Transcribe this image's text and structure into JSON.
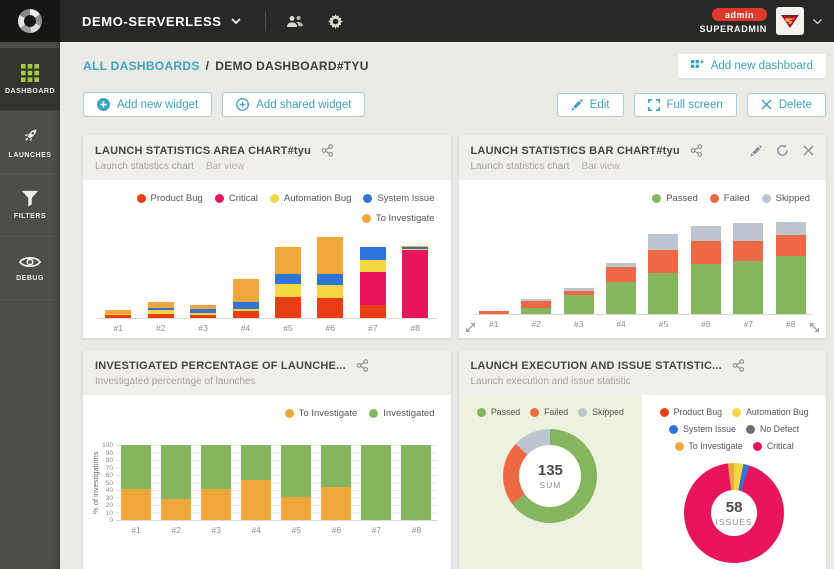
{
  "topbar": {
    "project": "DEMO-SERVERLESS",
    "admin_badge": "admin",
    "username": "SUPERADMIN"
  },
  "sidebar": {
    "items": [
      {
        "label": "DASHBOARD",
        "icon": "grid-icon",
        "active": true
      },
      {
        "label": "LAUNCHES",
        "icon": "rocket-icon",
        "active": false
      },
      {
        "label": "FILTERS",
        "icon": "filter-icon",
        "active": false
      },
      {
        "label": "DEBUG",
        "icon": "eye-icon",
        "active": false
      }
    ]
  },
  "breadcrumb": {
    "root": "ALL DASHBOARDS",
    "separator": "/",
    "current": "DEMO DASHBOARD#TYU"
  },
  "header_actions": {
    "add_dashboard": "Add new dashboard"
  },
  "toolbar": {
    "add_widget": "Add new widget",
    "add_shared_widget": "Add shared widget",
    "edit": "Edit",
    "fullscreen": "Full screen",
    "delete": "Delete"
  },
  "colors": {
    "accent_teal": "#3ba3c0",
    "product_bug": "#e93e14",
    "critical": "#e8145e",
    "automation_bug": "#f6d644",
    "system_issue": "#2e74d9",
    "to_investigate": "#f2a73d",
    "passed": "#86b55f",
    "failed": "#ed6a45",
    "skipped": "#bdc6ce",
    "no_defect": "#6f6f6f",
    "investigated": "#86b55f",
    "admin_red": "#e03a2d",
    "sidebar_active_icon": "#a3c93c"
  },
  "widgets": [
    {
      "title": "LAUNCH STATISTICS AREA CHART#tyu",
      "subtitle": "Launch statistics chart",
      "view": "Bar view"
    },
    {
      "title": "LAUNCH STATISTICS BAR CHART#tyu",
      "subtitle": "Launch statistics chart",
      "view": "Bar view"
    },
    {
      "title": "INVESTIGATED PERCENTAGE OF LAUNCHE...",
      "subtitle": "Investigated percentage of launches",
      "view": ""
    },
    {
      "title": "LAUNCH EXECUTION AND ISSUE STATISTIC...",
      "subtitle": "Launch execution and issue statistic",
      "view": ""
    }
  ],
  "legends": {
    "w1": [
      {
        "label": "Product Bug",
        "color": "#e93e14"
      },
      {
        "label": "Critical",
        "color": "#e8145e"
      },
      {
        "label": "Automation Bug",
        "color": "#f6d644"
      },
      {
        "label": "System Issue",
        "color": "#2e74d9"
      },
      {
        "label": "To Investigate",
        "color": "#f2a73d"
      }
    ],
    "w2": [
      {
        "label": "Passed",
        "color": "#86b55f"
      },
      {
        "label": "Failed",
        "color": "#ed6a45"
      },
      {
        "label": "Skipped",
        "color": "#bdc6ce"
      }
    ],
    "w3": [
      {
        "label": "To Investigate",
        "color": "#f2a73d"
      },
      {
        "label": "Investigated",
        "color": "#86b55f"
      }
    ],
    "w4_left": [
      {
        "label": "Passed",
        "color": "#86b55f"
      },
      {
        "label": "Failed",
        "color": "#ed6a45"
      },
      {
        "label": "Skipped",
        "color": "#bdc6ce"
      }
    ],
    "w4_right": [
      {
        "label": "Product Bug",
        "color": "#e93e14"
      },
      {
        "label": "Automation Bug",
        "color": "#f6d644"
      },
      {
        "label": "System Issue",
        "color": "#2e74d9"
      },
      {
        "label": "No Defect",
        "color": "#6f6f6f"
      },
      {
        "label": "To Investigate",
        "color": "#f2a73d"
      },
      {
        "label": "Critical",
        "color": "#e8145e"
      }
    ]
  },
  "chart_data": [
    {
      "type": "bar",
      "stacked": true,
      "title": "LAUNCH STATISTICS AREA CHART#tyu",
      "categories": [
        "#1",
        "#2",
        "#3",
        "#4",
        "#5",
        "#6",
        "#7",
        "#8"
      ],
      "series": [
        {
          "name": "Product Bug",
          "color": "#e93e14",
          "values": [
            2,
            3,
            2,
            5,
            16,
            15,
            10,
            0
          ]
        },
        {
          "name": "Critical",
          "color": "#e8145e",
          "values": [
            0,
            0,
            0,
            0,
            0,
            0,
            25,
            52
          ]
        },
        {
          "name": "Automation Bug",
          "color": "#f6d644",
          "values": [
            1,
            3,
            2,
            2,
            10,
            10,
            9,
            1
          ]
        },
        {
          "name": "System Issue",
          "color": "#2e74d9",
          "values": [
            0,
            2,
            3,
            5,
            8,
            9,
            10,
            1
          ]
        },
        {
          "name": "To Investigate",
          "color": "#f2a73d",
          "values": [
            3,
            4,
            3,
            18,
            20,
            28,
            0,
            1
          ]
        }
      ],
      "ylim": [
        0,
        65
      ],
      "grid": false,
      "legend_position": "top-right"
    },
    {
      "type": "bar",
      "stacked": true,
      "title": "LAUNCH STATISTICS BAR CHART#tyu",
      "categories": [
        "#1",
        "#2",
        "#3",
        "#4",
        "#5",
        "#6",
        "#7",
        "#8"
      ],
      "series": [
        {
          "name": "Passed",
          "color": "#86b55f",
          "values": [
            0,
            4,
            13,
            22,
            28,
            34,
            36,
            40
          ]
        },
        {
          "name": "Failed",
          "color": "#ed6a45",
          "values": [
            2,
            5,
            3,
            10,
            16,
            16,
            14,
            14
          ]
        },
        {
          "name": "Skipped",
          "color": "#bdc6ce",
          "values": [
            0,
            1,
            2,
            3,
            11,
            10,
            12,
            9
          ]
        }
      ],
      "ylim": [
        0,
        65
      ],
      "grid": false,
      "legend_position": "top-right"
    },
    {
      "type": "bar",
      "stacked": true,
      "percent": true,
      "title": "INVESTIGATED PERCENTAGE OF LAUNCHES",
      "categories": [
        "#1",
        "#2",
        "#3",
        "#4",
        "#5",
        "#6",
        "#7",
        "#8"
      ],
      "series": [
        {
          "name": "To Investigate",
          "color": "#f2a73d",
          "values": [
            41,
            28,
            41,
            53,
            31,
            44,
            0,
            0
          ]
        },
        {
          "name": "Investigated",
          "color": "#86b55f",
          "values": [
            59,
            72,
            59,
            47,
            69,
            56,
            100,
            100
          ]
        }
      ],
      "ylabel": "% of investigations",
      "yticks": [
        0,
        10,
        20,
        30,
        40,
        50,
        60,
        70,
        80,
        90,
        100
      ],
      "ylim": [
        0,
        100
      ],
      "grid": true,
      "legend_position": "top-right"
    },
    {
      "type": "donut",
      "title": "Launch execution statistics",
      "center_value": "135",
      "center_label": "SUM",
      "segments": [
        {
          "name": "Passed",
          "color": "#86b55f",
          "pct": 65
        },
        {
          "name": "Failed",
          "color": "#ed6a45",
          "pct": 22
        },
        {
          "name": "Skipped",
          "color": "#bdc6ce",
          "pct": 13
        }
      ]
    },
    {
      "type": "donut",
      "title": "Issue statistics",
      "center_value": "58",
      "center_label": "ISSUES",
      "segments": [
        {
          "name": "Automation Bug",
          "color": "#f6d644",
          "pct": 3
        },
        {
          "name": "System Issue",
          "color": "#2e74d9",
          "pct": 2
        },
        {
          "name": "Critical",
          "color": "#e8145e",
          "pct": 93
        },
        {
          "name": "To Investigate",
          "color": "#f2a73d",
          "pct": 2
        }
      ]
    }
  ]
}
